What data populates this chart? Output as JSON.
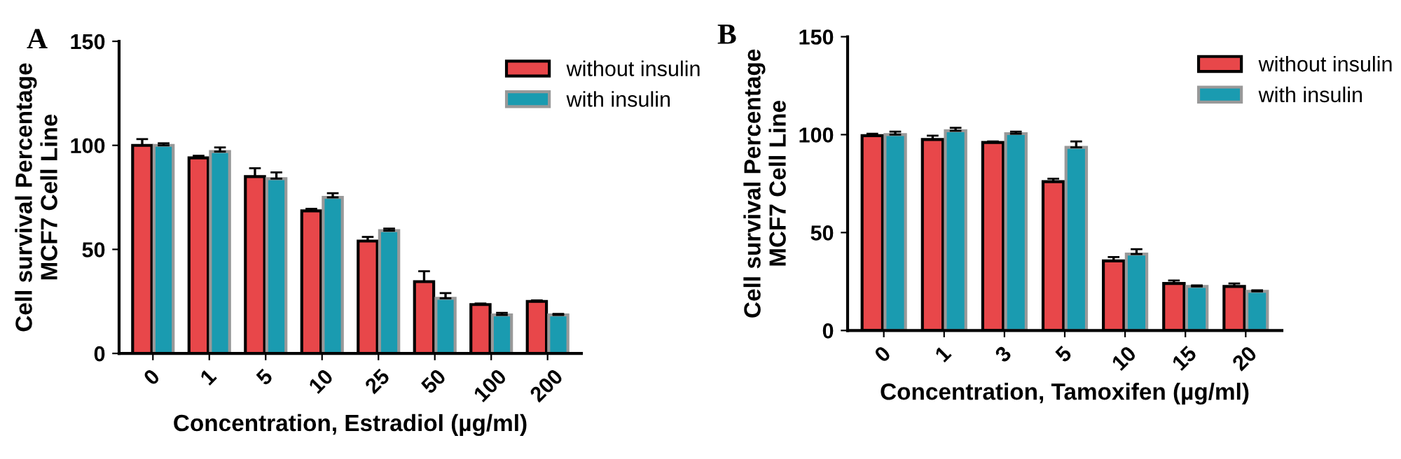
{
  "chart_data": [
    {
      "type": "bar",
      "title": "A",
      "xlabel": "Concentration, Estradiol (µg/ml)",
      "ylabel": "Cell survival Percentage\nMCF7 Cell Line",
      "categories": [
        "0",
        "1",
        "5",
        "10",
        "25",
        "50",
        "100",
        "200"
      ],
      "series": [
        {
          "name": "without insulin",
          "color": "#e8474a",
          "values": [
            100,
            94,
            85,
            68.5,
            54,
            34.5,
            23.5,
            25
          ],
          "errors": [
            [
              100,
              103
            ],
            [
              94,
              95
            ],
            [
              85,
              89
            ],
            [
              68.5,
              69.5
            ],
            [
              54,
              56
            ],
            [
              34.5,
              39.5
            ],
            [
              23.5,
              24
            ],
            [
              25,
              25.5
            ]
          ]
        },
        {
          "name": "with insulin",
          "color": "#1a9bb0",
          "values": [
            100,
            97,
            84,
            75,
            59,
            26.5,
            18.5,
            18.5
          ],
          "errors": [
            [
              100,
              101
            ],
            [
              97,
              99
            ],
            [
              84,
              87
            ],
            [
              75,
              77
            ],
            [
              59,
              60
            ],
            [
              26.5,
              29
            ],
            [
              18.5,
              19.5
            ],
            [
              18.5,
              19
            ]
          ]
        }
      ],
      "ylim": [
        0,
        150
      ],
      "yticks": [
        0,
        50,
        100,
        150
      ],
      "grid": false,
      "legend": "top right"
    },
    {
      "type": "bar",
      "title": "B",
      "xlabel": "Concentration, Tamoxifen (µg/ml)",
      "ylabel": "Cell survival Percentage\nMCF7 Cell Line",
      "categories": [
        "0",
        "1",
        "3",
        "5",
        "10",
        "15",
        "20"
      ],
      "series": [
        {
          "name": "without insulin",
          "color": "#e8474a",
          "values": [
            99.5,
            97.5,
            96,
            76,
            35.5,
            24,
            22.5
          ],
          "errors": [
            [
              99.5,
              100.5
            ],
            [
              97.5,
              99.5
            ],
            [
              96,
              96.5
            ],
            [
              76,
              77.5
            ],
            [
              35.5,
              37.5
            ],
            [
              24,
              25.5
            ],
            [
              22.5,
              24
            ]
          ]
        },
        {
          "name": "with insulin",
          "color": "#1a9bb0",
          "values": [
            100,
            102,
            100.5,
            93.5,
            39,
            22.5,
            20
          ],
          "errors": [
            [
              100,
              101.5
            ],
            [
              102,
              103.5
            ],
            [
              100.5,
              101.5
            ],
            [
              93.5,
              96.5
            ],
            [
              39,
              41.5
            ],
            [
              22.5,
              23
            ],
            [
              20,
              20.5
            ]
          ]
        }
      ],
      "ylim": [
        0,
        150
      ],
      "yticks": [
        0,
        50,
        100,
        150
      ],
      "grid": false,
      "legend": "top right"
    }
  ]
}
